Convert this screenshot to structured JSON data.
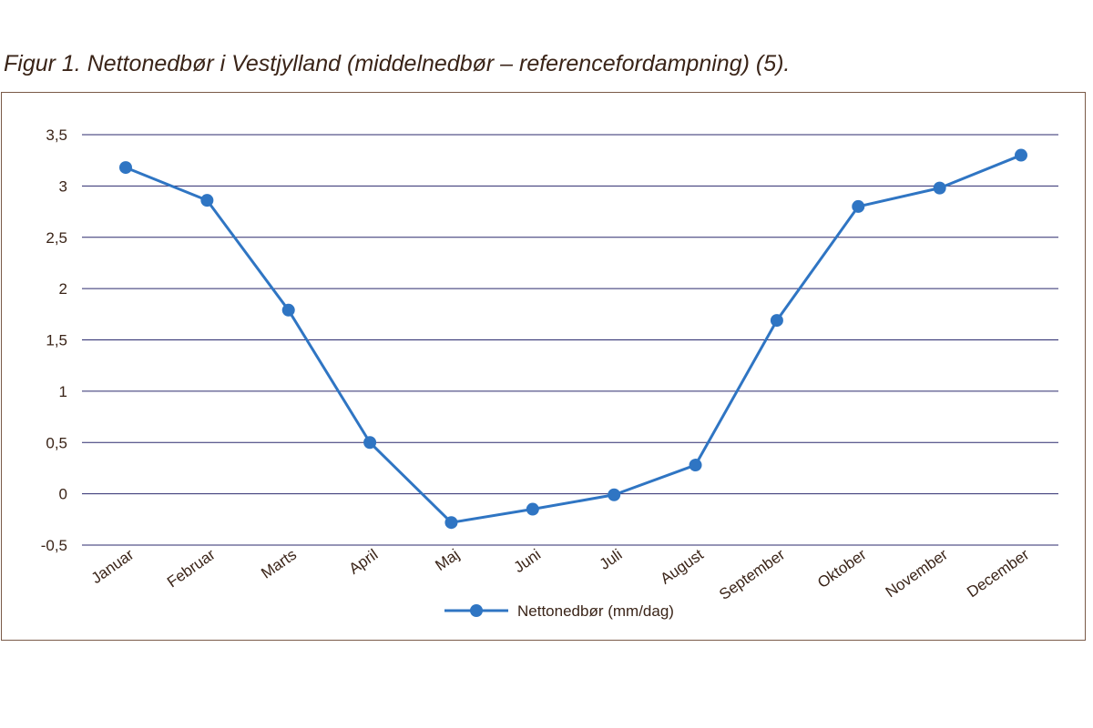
{
  "caption": "Figur 1. Nettonedbør i Vestjylland (middelnedbør – referencefordampning) (5).",
  "colors": {
    "series": "#2f75c3",
    "grid": "#2b2a6e",
    "text": "#3a2418",
    "frame": "#7a5a48"
  },
  "chart_data": {
    "type": "line",
    "title": "",
    "xlabel": "",
    "ylabel": "",
    "categories": [
      "Januar",
      "Februar",
      "Marts",
      "April",
      "Maj",
      "Juni",
      "Juli",
      "August",
      "September",
      "Oktober",
      "November",
      "December"
    ],
    "series": [
      {
        "name": "Nettonedbør (mm/dag)",
        "values": [
          3.18,
          2.86,
          1.79,
          0.5,
          -0.28,
          -0.15,
          -0.01,
          0.28,
          1.69,
          2.8,
          2.98,
          3.3
        ]
      }
    ],
    "ylim": [
      -0.5,
      3.5
    ],
    "yticks": [
      "-0,5",
      "0",
      "0,5",
      "1",
      "1,5",
      "2",
      "2,5",
      "3",
      "3,5"
    ],
    "ytick_values": [
      -0.5,
      0,
      0.5,
      1,
      1.5,
      2,
      2.5,
      3,
      3.5
    ],
    "grid": true,
    "legend_position": "bottom-center"
  }
}
